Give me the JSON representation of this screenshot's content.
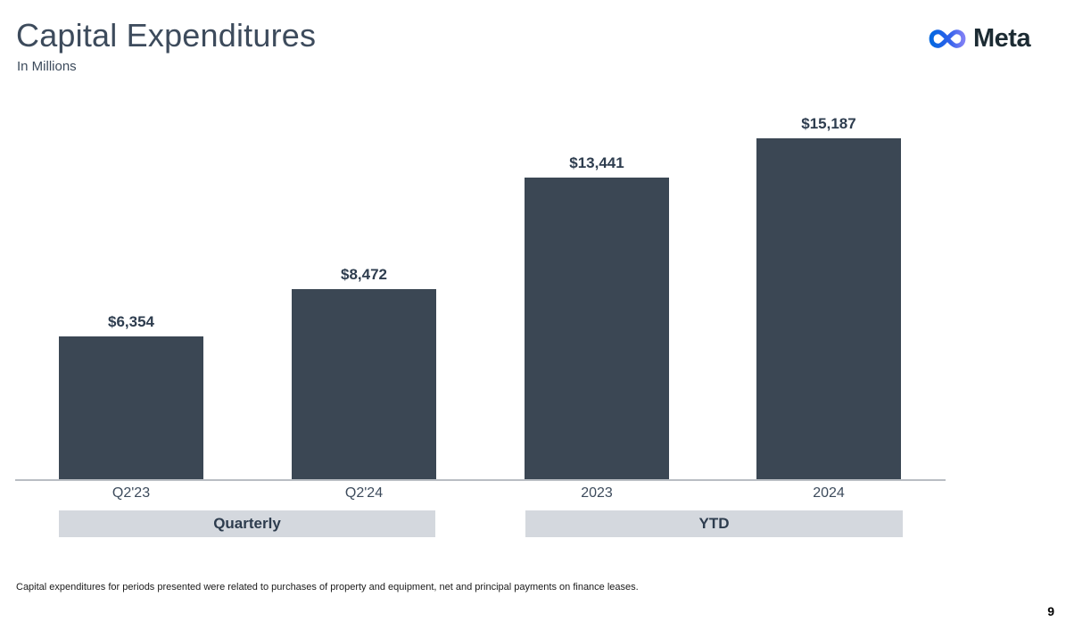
{
  "header": {
    "title": "Capital Expenditures",
    "subtitle": "In Millions",
    "logo_text": "Meta"
  },
  "chart_data": {
    "type": "bar",
    "title": "Capital Expenditures",
    "subtitle": "In Millions",
    "categories": [
      "Q2'23",
      "Q2'24",
      "2023",
      "2024"
    ],
    "values": [
      6354,
      8472,
      13441,
      15187
    ],
    "value_labels": [
      "$6,354",
      "$8,472",
      "$13,441",
      "$15,187"
    ],
    "groups": [
      {
        "label": "Quarterly",
        "categories": [
          "Q2'23",
          "Q2'24"
        ]
      },
      {
        "label": "YTD",
        "categories": [
          "2023",
          "2024"
        ]
      }
    ],
    "xlabel": "",
    "ylabel": "In Millions",
    "grid": false,
    "legend": false,
    "bar_color": "#3b4754"
  },
  "footer": {
    "footnote": "Capital expenditures for periods presented were related to purchases of property and equipment, net and principal payments on finance leases.",
    "page_number": "9"
  },
  "colors": {
    "bar": "#3b4754",
    "band_background": "#d4d8de",
    "axis_line": "#b9bdc3",
    "heading_text": "#3d4b5c",
    "value_text": "#2e3d4f",
    "logo_text": "#1c2b33",
    "logo_gradient_start": "#0568e0",
    "logo_gradient_end": "#7e7ff5",
    "background": "#ffffff"
  }
}
